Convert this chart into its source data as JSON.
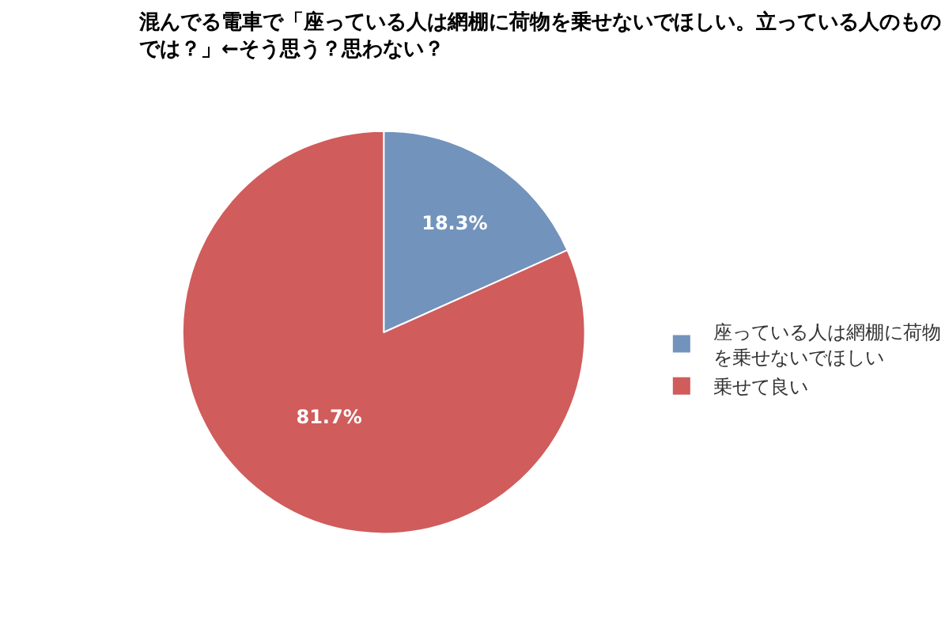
{
  "chart_data": {
    "type": "pie",
    "title": "混んでる電車で「座っている人は網棚に荷物を乗せないでほしい。立っている人のものでは？」←そう思う？思わない？",
    "categories": [
      "座っている人は網棚に荷物を乗せないでほしい",
      "乗せて良い"
    ],
    "values": [
      18.3,
      81.7
    ],
    "colors": [
      "#7293bc",
      "#d05c5c"
    ],
    "value_labels": [
      "18.3%",
      "81.7%"
    ],
    "legend": "right"
  }
}
